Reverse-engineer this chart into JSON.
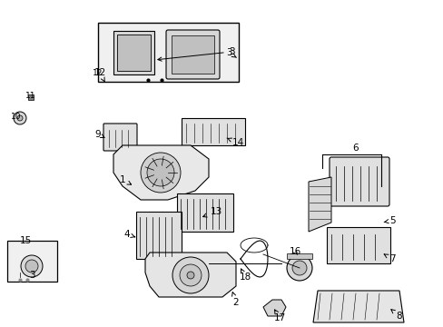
{
  "title": "",
  "bg_color": "#ffffff",
  "line_color": "#000000",
  "label_color": "#000000",
  "parts": {
    "labels": [
      1,
      2,
      3,
      4,
      5,
      6,
      7,
      8,
      9,
      10,
      11,
      12,
      13,
      14,
      15,
      16,
      17,
      18
    ],
    "positions": [
      [
        155,
        210,
        "1"
      ],
      [
        255,
        305,
        "2"
      ],
      [
        235,
        10,
        "3"
      ],
      [
        175,
        260,
        "4"
      ],
      [
        400,
        245,
        "5"
      ],
      [
        385,
        155,
        "6"
      ],
      [
        415,
        285,
        "7"
      ],
      [
        415,
        330,
        "8"
      ],
      [
        140,
        145,
        "9"
      ],
      [
        22,
        125,
        "10"
      ],
      [
        32,
        100,
        "11"
      ],
      [
        110,
        75,
        "12"
      ],
      [
        275,
        235,
        "13"
      ],
      [
        295,
        155,
        "14"
      ],
      [
        28,
        270,
        "15"
      ],
      [
        330,
        285,
        "16"
      ],
      [
        310,
        325,
        "17"
      ],
      [
        295,
        285,
        "18"
      ]
    ]
  }
}
